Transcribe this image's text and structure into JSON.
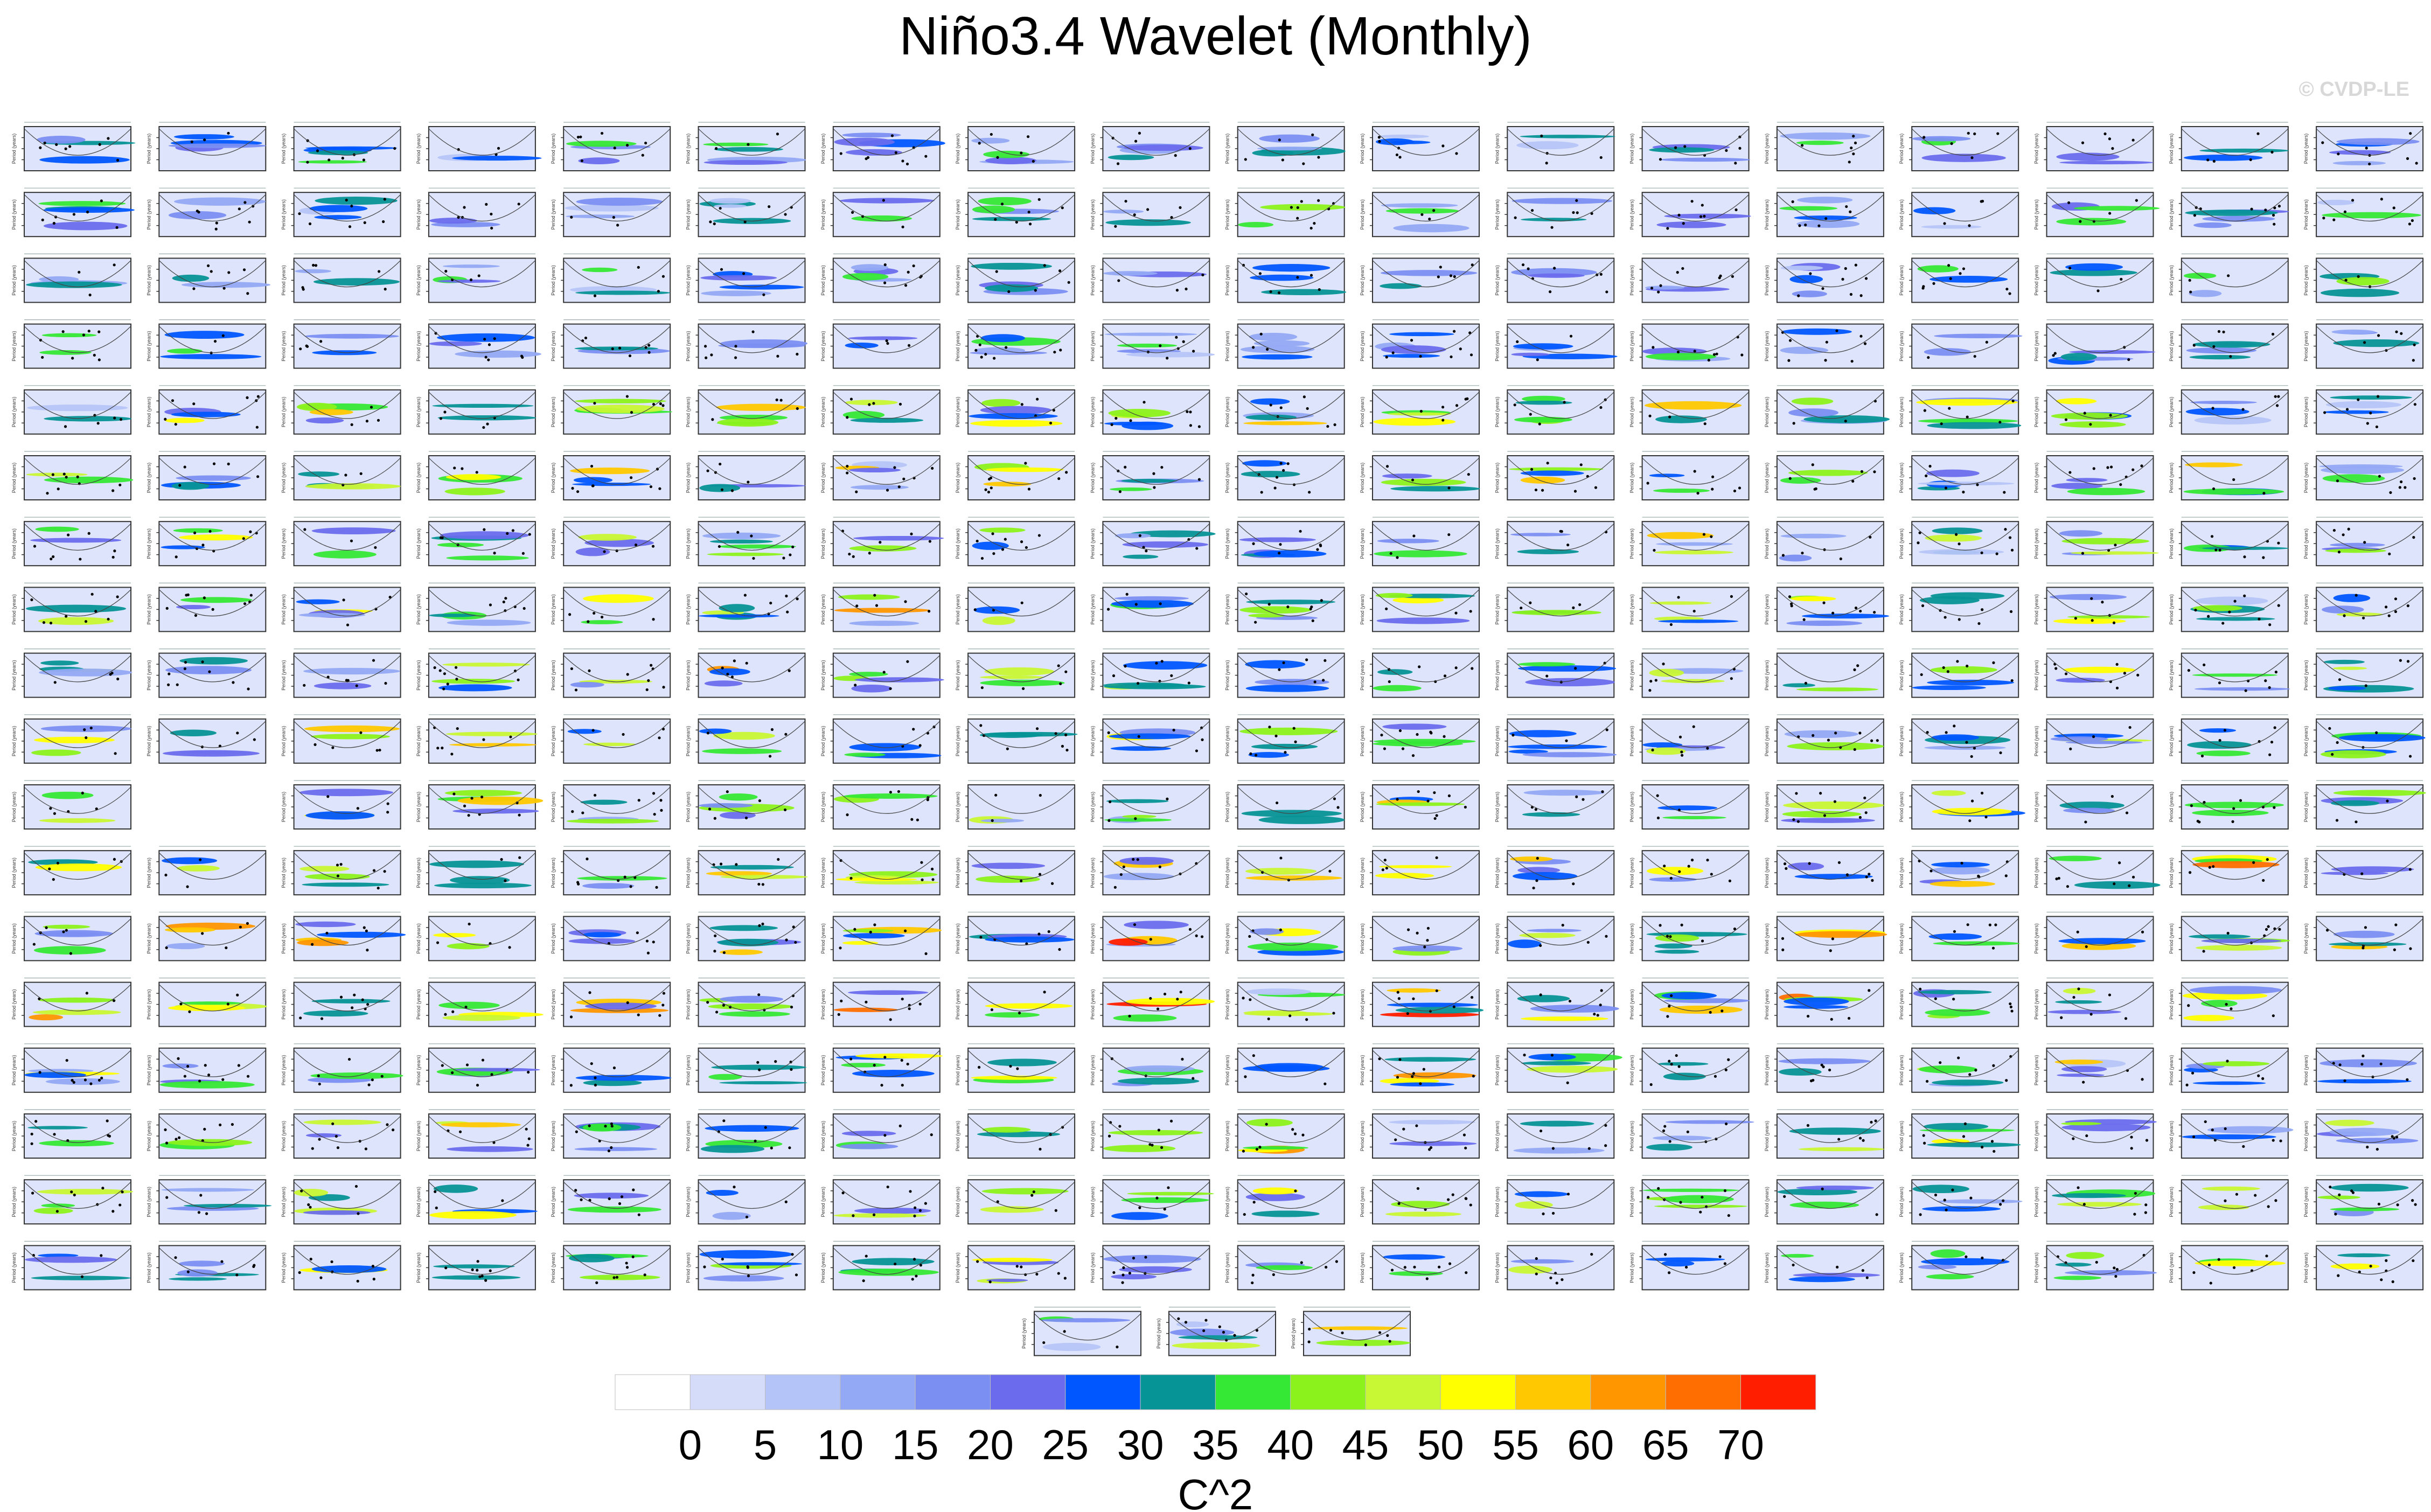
{
  "page": {
    "title": "Niño3.4 Wavelet (Monthly)",
    "watermark": "© CVDP-LE"
  },
  "chart_data": {
    "type": "heatmap",
    "title": "Niño3.4 Wavelet (Monthly)",
    "panel_grid": {
      "rows": 19,
      "columns": 18,
      "row_lengths": [
        18,
        18,
        18,
        18,
        18,
        18,
        18,
        18,
        18,
        18,
        18,
        18,
        18,
        17,
        18,
        18,
        18,
        18,
        3
      ],
      "empty_panels": [
        {
          "row": 10,
          "column": 1
        }
      ],
      "panel_axes": {
        "xlabel": "",
        "ylabel": "Period (years)"
      }
    },
    "colorbar": {
      "label": "C^2",
      "orientation": "horizontal",
      "levels": [
        0,
        5,
        10,
        15,
        20,
        25,
        30,
        35,
        40,
        45,
        50,
        55,
        60,
        65,
        70
      ],
      "colors": [
        "#ffffff",
        "#d4dcfa",
        "#b5c4f8",
        "#93a9f6",
        "#7b8ff2",
        "#6a6ced",
        "#0056ff",
        "#069496",
        "#35e835",
        "#8cf21c",
        "#c8f733",
        "#ffff00",
        "#ffc800",
        "#ff9600",
        "#ff6e00",
        "#ff1e00"
      ]
    }
  }
}
